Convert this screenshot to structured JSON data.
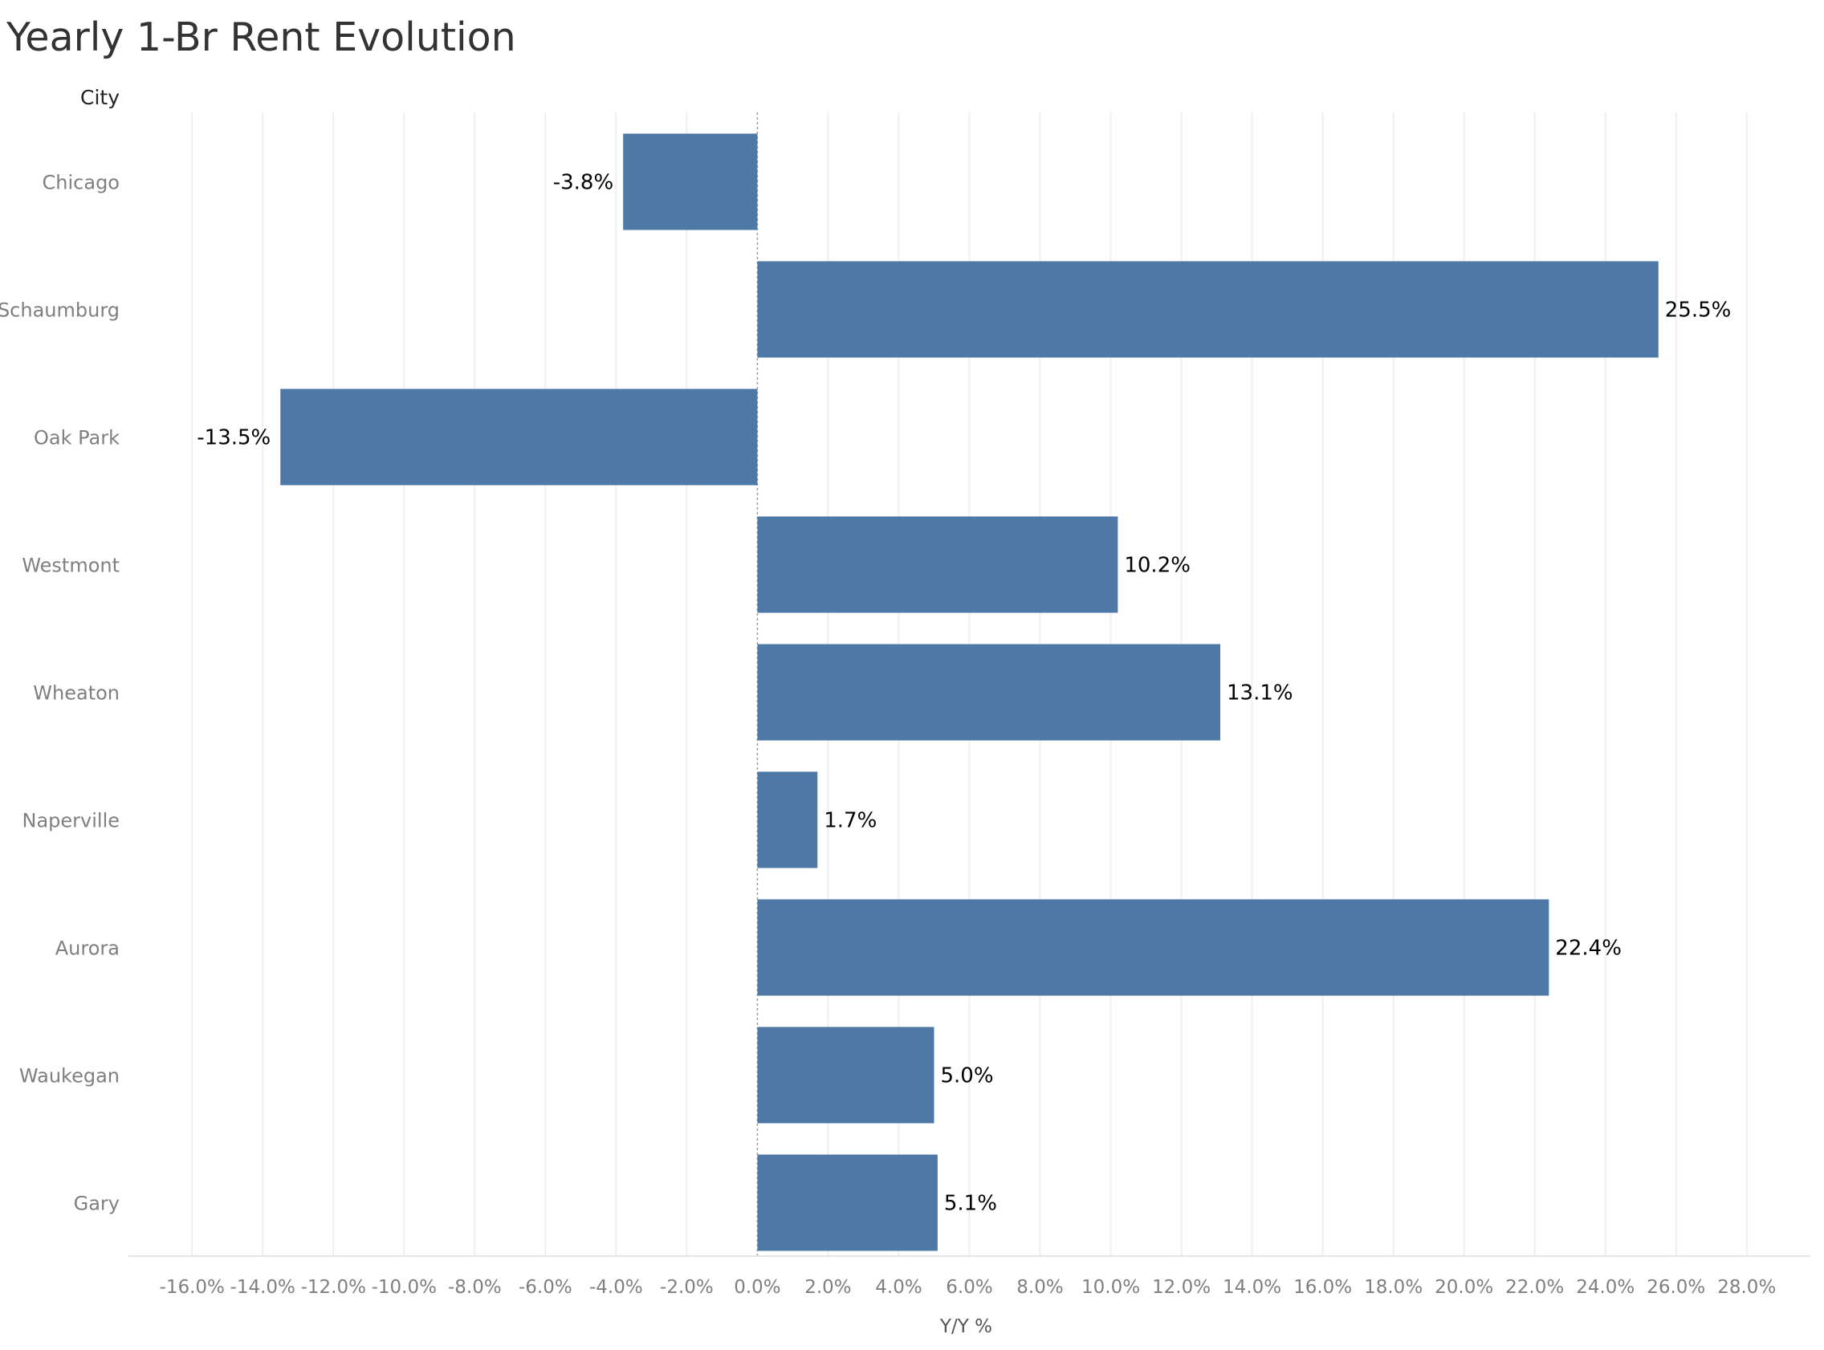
{
  "chart_data": {
    "type": "bar",
    "orientation": "horizontal",
    "title": "Yearly 1-Br Rent Evolution",
    "row_header": "City",
    "xlabel": "Y/Y %",
    "ylabel": "",
    "categories": [
      "Chicago",
      "Schaumburg",
      "Oak Park",
      "Westmont",
      "Wheaton",
      "Naperville",
      "Aurora",
      "Waukegan",
      "Gary"
    ],
    "values": [
      -3.8,
      25.5,
      -13.5,
      10.2,
      13.1,
      1.7,
      22.4,
      5.0,
      5.1
    ],
    "data_labels": [
      "-3.8%",
      "25.5%",
      "-13.5%",
      "10.2%",
      "13.1%",
      "1.7%",
      "22.4%",
      "5.0%",
      "5.1%"
    ],
    "xlim": [
      -17.8,
      29.8
    ],
    "xticks": [
      -16,
      -14,
      -12,
      -10,
      -8,
      -6,
      -4,
      -2,
      0,
      2,
      4,
      6,
      8,
      10,
      12,
      14,
      16,
      18,
      20,
      22,
      24,
      26,
      28
    ],
    "xtick_labels": [
      "-16.0%",
      "-14.0%",
      "-12.0%",
      "-10.0%",
      "-8.0%",
      "-6.0%",
      "-4.0%",
      "-2.0%",
      "0.0%",
      "2.0%",
      "4.0%",
      "6.0%",
      "8.0%",
      "10.0%",
      "12.0%",
      "14.0%",
      "16.0%",
      "18.0%",
      "20.0%",
      "22.0%",
      "24.0%",
      "26.0%",
      "28.0%"
    ],
    "grid": true,
    "legend": "none",
    "bar_color": "#4e79a7",
    "zero_line_color": "#999999",
    "grid_color": "#efefef"
  }
}
